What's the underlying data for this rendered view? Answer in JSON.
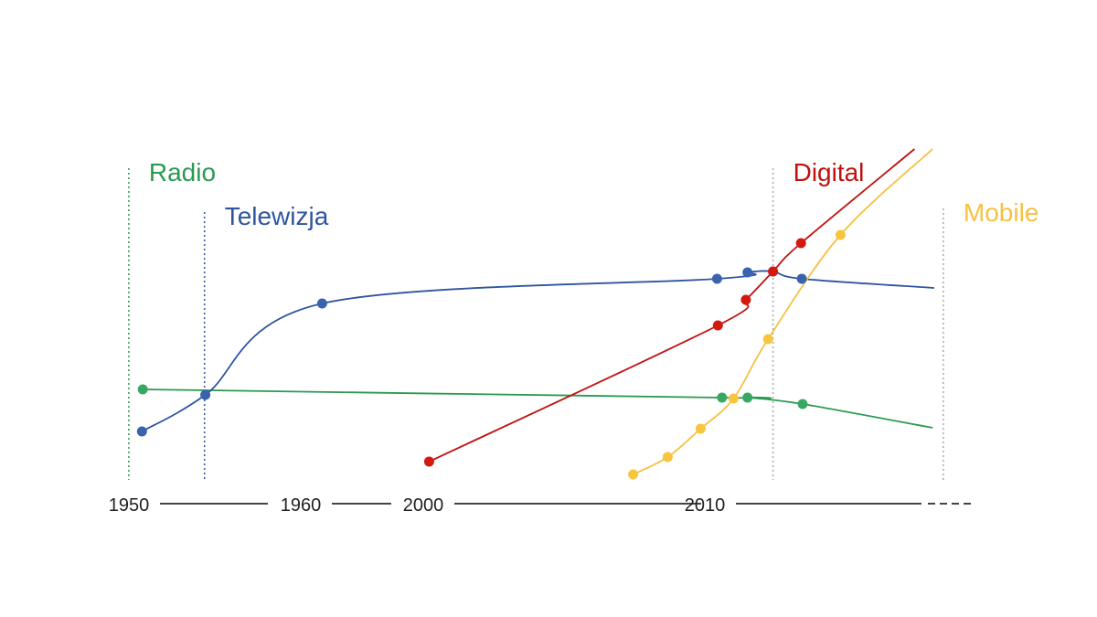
{
  "chart_data": {
    "type": "line",
    "title": "",
    "xlabel": "",
    "ylabel": "",
    "x_units": "timeline position index (0-100, no numeric axis shown)",
    "y_units": "relative index (0-100, no numeric axis shown)",
    "xlim": [
      0,
      100
    ],
    "ylim": [
      0,
      100
    ],
    "grid": false,
    "timeline_ticks": [
      {
        "label": "1950",
        "x": 0
      },
      {
        "label": "1960",
        "x": 21.1
      },
      {
        "label": "2000",
        "x": 36
      },
      {
        "label": "2010",
        "x": 70.1
      }
    ],
    "era_markers": [
      {
        "label": "Radio",
        "x": 0.1,
        "top": 89,
        "color": "#2a9a50"
      },
      {
        "label": "Telewizja",
        "x": 9.3,
        "top": 77,
        "color": "#2f55a0"
      },
      {
        "label": "Digital",
        "x": 78.4,
        "top": 89,
        "color": "#c0110e"
      },
      {
        "label": "Mobile",
        "x": 99.1,
        "top": 78,
        "color": "#f6c142"
      }
    ],
    "series": [
      {
        "name": "Radio",
        "color": "#2a9a50",
        "marker": "#37a862",
        "points": [
          [
            1.8,
            28.5
          ],
          [
            72.2,
            26.25
          ],
          [
            75.3,
            26.25
          ],
          [
            82,
            24.5
          ]
        ],
        "line_end": [
          97.8,
          18
        ]
      },
      {
        "name": "Telewizja",
        "color": "#2f55a0",
        "marker": "#3a63ad",
        "points": [
          [
            1.7,
            17
          ],
          [
            9.4,
            27
          ],
          [
            23.6,
            52
          ],
          [
            71.6,
            58.75
          ],
          [
            75.3,
            60.5
          ],
          [
            78.4,
            60.75
          ],
          [
            81.9,
            58.75
          ]
        ],
        "line_end": [
          98,
          56.25
        ]
      },
      {
        "name": "Digital",
        "color": "#c0110e",
        "marker": "#d31a10",
        "points": [
          [
            36.6,
            8.75
          ],
          [
            71.7,
            46
          ],
          [
            75.1,
            53
          ],
          [
            78.4,
            60.75
          ],
          [
            81.8,
            68.5
          ]
        ],
        "line_end": [
          95.6,
          94.25
        ]
      },
      {
        "name": "Mobile",
        "color": "#f6c142",
        "marker": "#f8c53e",
        "points": [
          [
            61.4,
            5.25
          ],
          [
            65.6,
            10
          ],
          [
            69.6,
            17.75
          ],
          [
            73.6,
            26
          ],
          [
            77.8,
            42.25
          ],
          [
            86.6,
            70.75
          ]
        ],
        "line_end": [
          97.8,
          94.25
        ]
      }
    ]
  }
}
